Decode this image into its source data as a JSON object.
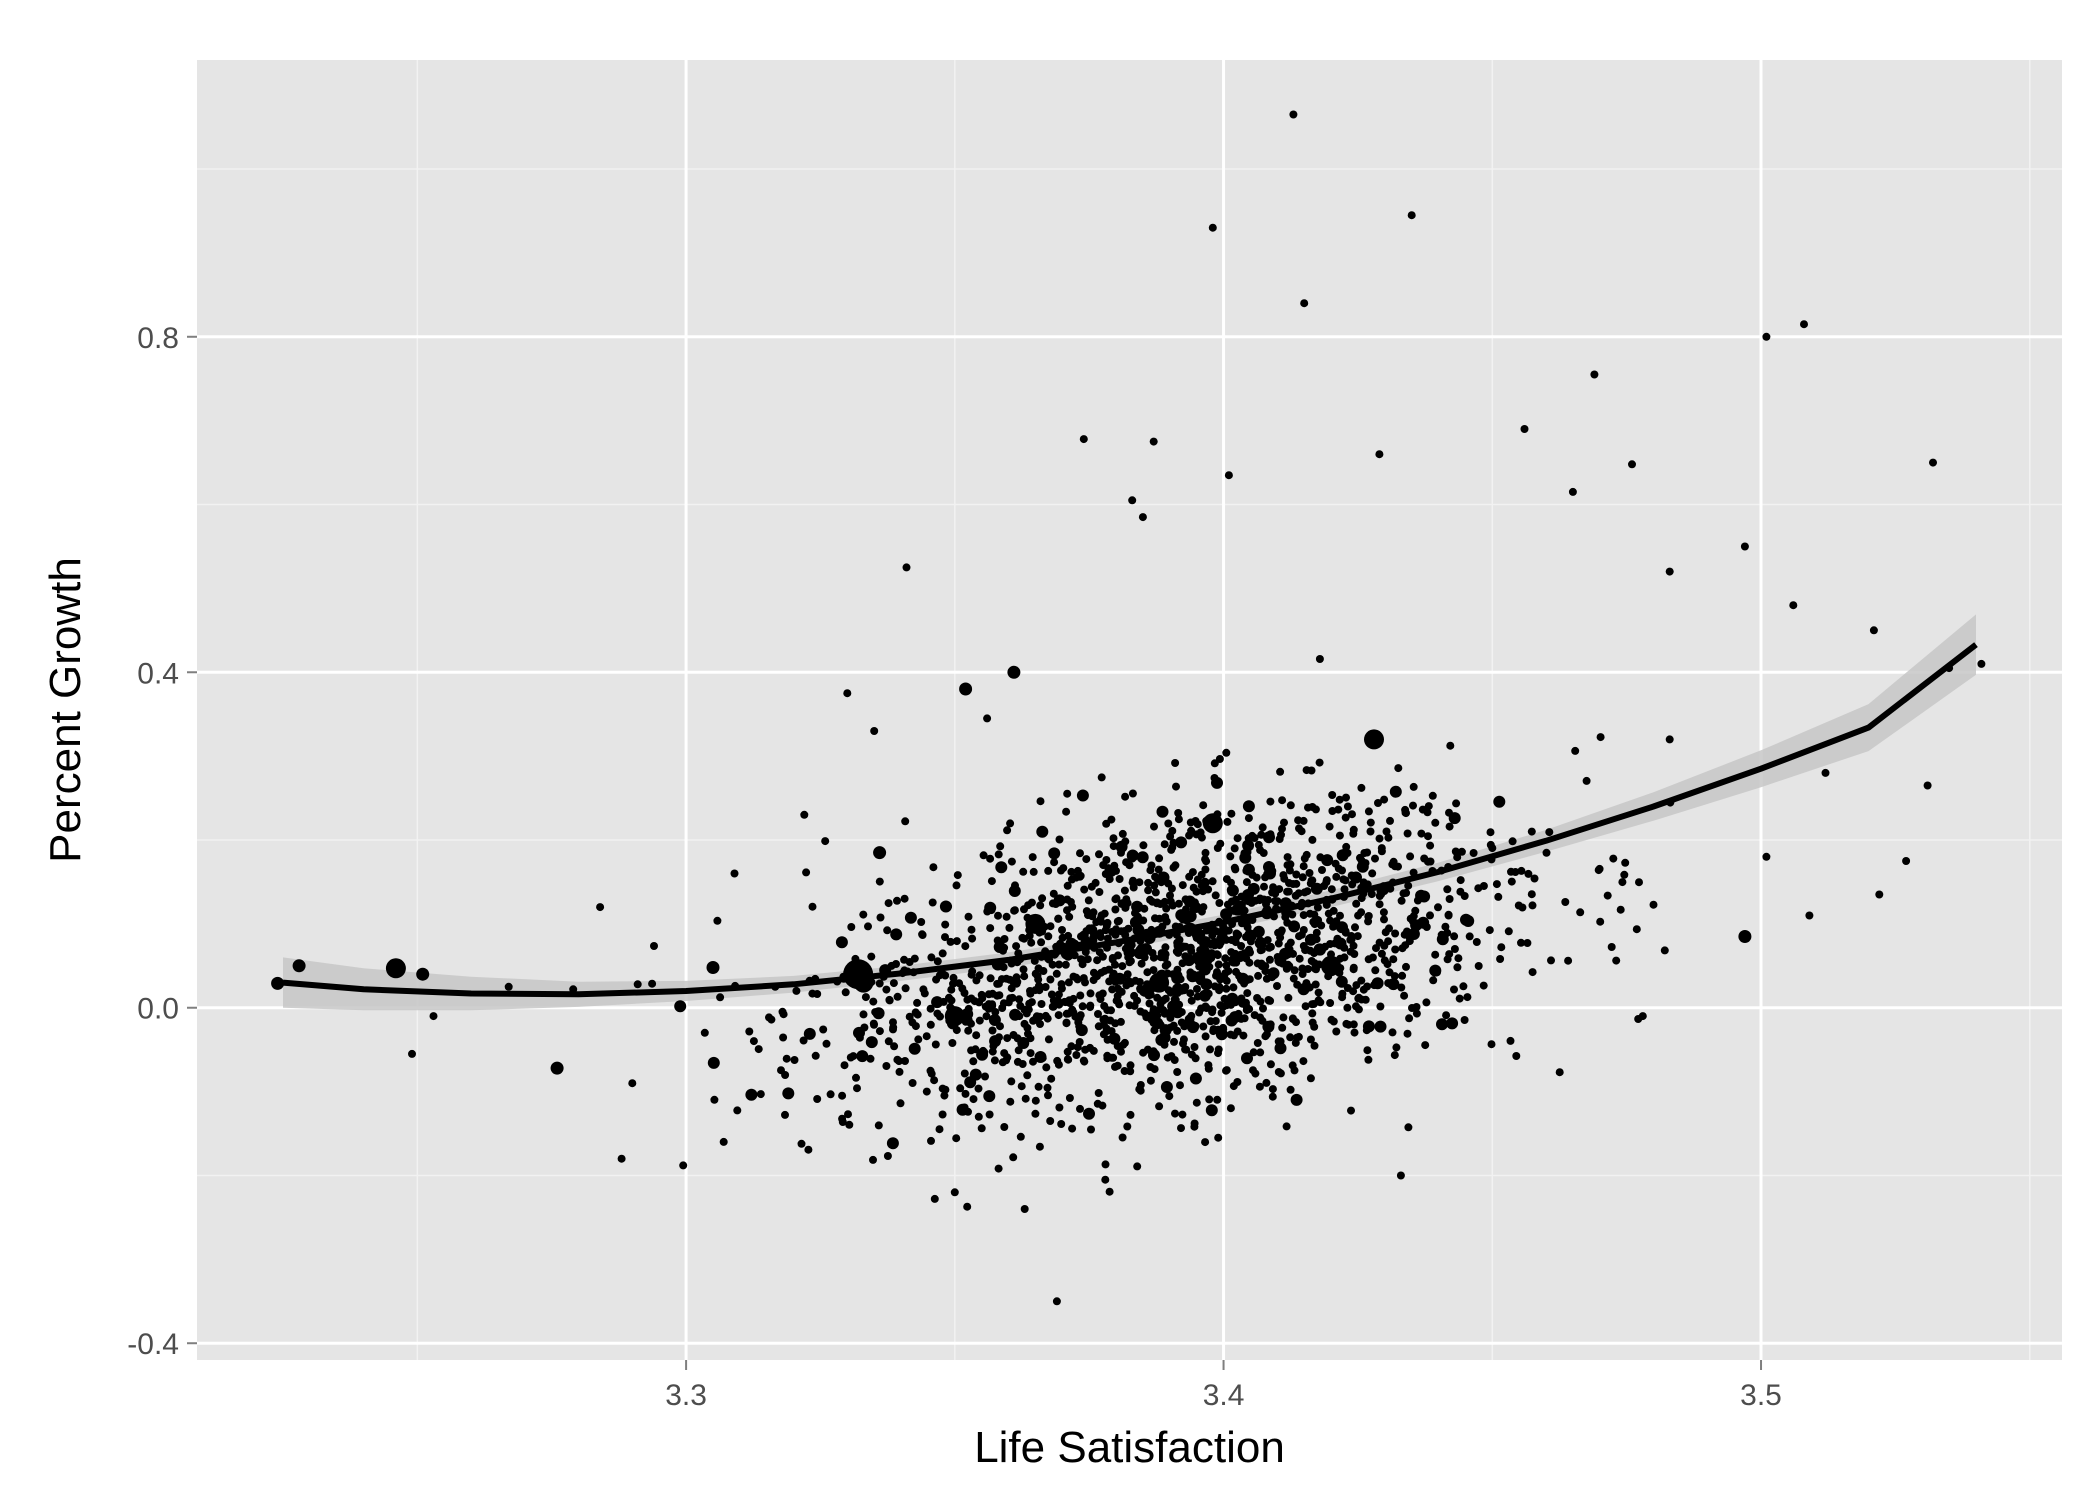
{
  "chart_data": {
    "type": "scatter",
    "title": "",
    "xlabel": "Life Satisfaction",
    "ylabel": "Percent Growth",
    "xlim": [
      3.209,
      3.556
    ],
    "ylim": [
      -0.42,
      1.13
    ],
    "x_ticks": [
      3.3,
      3.4,
      3.5
    ],
    "x_tick_labels": [
      "3.3",
      "3.4",
      "3.5"
    ],
    "y_ticks": [
      -0.4,
      0.0,
      0.4,
      0.8
    ],
    "y_tick_labels": [
      "-0.4",
      "0.0",
      "0.4",
      "0.8"
    ],
    "grid": true,
    "legend": "none",
    "colors": {
      "panel": "#e5e5e5",
      "grid_major": "#ffffff",
      "grid_minor": "#f2f2f2",
      "points": "#000000",
      "fit_line": "#000000",
      "confidence_band": "#c7c7c7"
    },
    "series": [
      {
        "kind": "points",
        "points": [
          [
            3.224,
            0.029,
            2
          ],
          [
            3.228,
            0.05,
            2
          ],
          [
            3.246,
            0.047,
            3
          ],
          [
            3.251,
            0.04,
            2
          ],
          [
            3.249,
            -0.055,
            1
          ],
          [
            3.253,
            -0.01,
            1
          ],
          [
            3.267,
            0.025,
            1
          ],
          [
            3.276,
            -0.072,
            2
          ],
          [
            3.279,
            0.022,
            1
          ],
          [
            3.284,
            0.12,
            1
          ],
          [
            3.288,
            -0.18,
            1
          ],
          [
            3.291,
            0.028,
            1
          ],
          [
            3.29,
            -0.09,
            1
          ],
          [
            3.305,
            0.048,
            2
          ],
          [
            3.307,
            -0.16,
            1
          ],
          [
            3.309,
            0.16,
            1
          ],
          [
            3.33,
            0.375,
            1
          ],
          [
            3.335,
            0.33,
            1
          ],
          [
            3.336,
            0.185,
            2
          ],
          [
            3.341,
            0.525,
            1
          ],
          [
            3.322,
            0.23,
            1
          ],
          [
            3.332,
            0.04,
            4
          ],
          [
            3.333,
            0.03,
            3
          ],
          [
            3.35,
            -0.22,
            1
          ],
          [
            3.352,
            0.38,
            2
          ],
          [
            3.356,
            0.345,
            1
          ],
          [
            3.361,
            0.4,
            2
          ],
          [
            3.363,
            -0.24,
            1
          ],
          [
            3.369,
            -0.35,
            1
          ],
          [
            3.374,
            0.678,
            1
          ],
          [
            3.378,
            -0.205,
            1
          ],
          [
            3.383,
            0.605,
            1
          ],
          [
            3.385,
            0.585,
            1
          ],
          [
            3.387,
            0.675,
            1
          ],
          [
            3.398,
            0.93,
            1
          ],
          [
            3.401,
            0.635,
            1
          ],
          [
            3.399,
            -0.155,
            1
          ],
          [
            3.413,
            1.065,
            1
          ],
          [
            3.415,
            0.84,
            1
          ],
          [
            3.429,
            0.66,
            1
          ],
          [
            3.433,
            -0.2,
            1
          ],
          [
            3.435,
            0.945,
            1
          ],
          [
            3.428,
            0.32,
            3
          ],
          [
            3.456,
            0.69,
            1
          ],
          [
            3.465,
            0.615,
            1
          ],
          [
            3.469,
            0.755,
            1
          ],
          [
            3.476,
            0.648,
            1
          ],
          [
            3.483,
            0.52,
            1
          ],
          [
            3.497,
            0.55,
            1
          ],
          [
            3.501,
            0.8,
            1
          ],
          [
            3.508,
            0.815,
            1
          ],
          [
            3.506,
            0.48,
            1
          ],
          [
            3.521,
            0.45,
            1
          ],
          [
            3.532,
            0.65,
            1
          ],
          [
            3.535,
            0.405,
            1
          ],
          [
            3.541,
            0.41,
            1
          ],
          [
            3.497,
            0.085,
            2
          ],
          [
            3.527,
            0.175,
            1
          ],
          [
            3.531,
            0.265,
            1
          ],
          [
            3.512,
            0.28,
            1
          ],
          [
            3.522,
            0.135,
            1
          ],
          [
            3.509,
            0.11,
            1
          ],
          [
            3.501,
            0.18,
            1
          ],
          [
            3.483,
            0.32,
            1
          ],
          [
            3.478,
            -0.01,
            1
          ],
          [
            3.398,
            0.22,
            3
          ],
          [
            3.365,
            0.1,
            3
          ],
          [
            3.35,
            -0.01,
            3
          ],
          [
            3.388,
            0.03,
            3
          ],
          [
            3.42,
            0.05,
            3
          ]
        ],
        "cloud": {
          "n": 1750,
          "x_center": 3.39,
          "x_sd": 0.032,
          "y_center": 0.06,
          "y_sd": 0.085,
          "seed": 12345
        }
      },
      {
        "kind": "fit_line",
        "x": [
          3.225,
          3.24,
          3.26,
          3.28,
          3.3,
          3.32,
          3.34,
          3.36,
          3.38,
          3.4,
          3.42,
          3.44,
          3.46,
          3.48,
          3.5,
          3.52,
          3.54
        ],
        "y": [
          0.03,
          0.022,
          0.017,
          0.016,
          0.02,
          0.028,
          0.041,
          0.057,
          0.078,
          0.102,
          0.13,
          0.162,
          0.199,
          0.24,
          0.285,
          0.334,
          0.433
        ],
        "band_width": [
          0.03,
          0.025,
          0.02,
          0.015,
          0.012,
          0.01,
          0.009,
          0.009,
          0.009,
          0.009,
          0.01,
          0.011,
          0.013,
          0.017,
          0.022,
          0.028,
          0.036
        ]
      }
    ]
  }
}
